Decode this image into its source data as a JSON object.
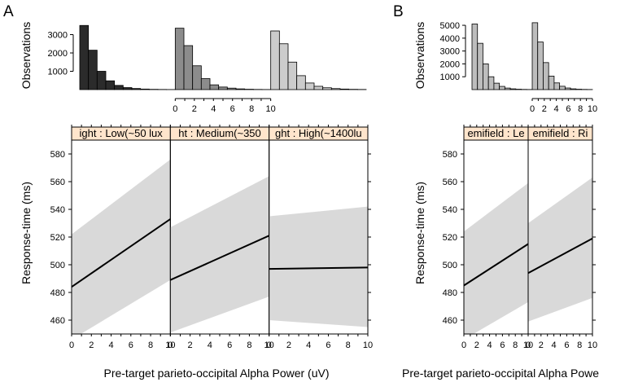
{
  "panel_labels": [
    "A",
    "B"
  ],
  "colors": {
    "ci_band": "#d9d9d9",
    "strip": "#ffe5cc",
    "hist_A": [
      "#2b2b2b",
      "#8c8c8c",
      "#cccccc"
    ],
    "hist_B": [
      "#bdbdbd",
      "#bdbdbd"
    ]
  },
  "chart_data": [
    {
      "panel": "A",
      "type": "line",
      "ylabel": "Response-time (ms)",
      "xlabel": "Pre-target parieto-occipital Alpha Power (uV)",
      "xlim": [
        0,
        10
      ],
      "ylim": [
        450,
        590
      ],
      "yticks": [
        460,
        480,
        500,
        520,
        540,
        560,
        580
      ],
      "xticks": [
        0,
        2,
        4,
        6,
        8,
        10
      ],
      "grid": false,
      "facets": [
        {
          "strip_label": "ight : Low(~50 lux",
          "x": [
            0,
            10
          ],
          "fit": [
            484,
            533
          ],
          "ci_lower": [
            446,
            489
          ],
          "ci_upper": [
            522,
            576
          ]
        },
        {
          "strip_label": "ht : Medium(~350",
          "x": [
            0,
            10
          ],
          "fit": [
            489,
            521
          ],
          "ci_lower": [
            451,
            477
          ],
          "ci_upper": [
            527,
            564
          ]
        },
        {
          "strip_label": "ght : High(~1400lu",
          "x": [
            0,
            10
          ],
          "fit": [
            497,
            498
          ],
          "ci_lower": [
            460,
            455
          ],
          "ci_upper": [
            535,
            542
          ]
        }
      ]
    },
    {
      "panel": "A",
      "type": "bar",
      "ylabel": "Observations",
      "ylim": [
        0,
        4000
      ],
      "yticks": [
        1000,
        2000,
        3000
      ],
      "xticks": [
        0,
        2,
        4,
        6,
        8,
        10
      ],
      "bin_width": 1,
      "histograms": [
        {
          "values": [
            3500,
            2150,
            1000,
            480,
            230,
            110,
            60,
            30,
            15,
            8,
            4
          ]
        },
        {
          "values": [
            3350,
            2400,
            1300,
            600,
            260,
            140,
            80,
            40,
            20,
            10,
            5
          ]
        },
        {
          "values": [
            3200,
            2500,
            1500,
            760,
            360,
            180,
            100,
            55,
            30,
            15,
            8
          ]
        }
      ]
    },
    {
      "panel": "B",
      "type": "line",
      "ylabel": "Response-time (ms)",
      "xlabel": "Pre-target parieto-occipital Alpha Powe",
      "xlim": [
        0,
        10
      ],
      "ylim": [
        450,
        590
      ],
      "yticks": [
        460,
        480,
        500,
        520,
        540,
        560,
        580
      ],
      "xticks": [
        0,
        2,
        4,
        6,
        8,
        10
      ],
      "grid": false,
      "facets": [
        {
          "strip_label": "emifield : Le",
          "x": [
            0,
            10
          ],
          "fit": [
            485,
            515
          ],
          "ci_lower": [
            446,
            473
          ],
          "ci_upper": [
            524,
            559
          ]
        },
        {
          "strip_label": "emifield : Ri",
          "x": [
            0,
            10
          ],
          "fit": [
            494,
            519
          ],
          "ci_lower": [
            459,
            476
          ],
          "ci_upper": [
            530,
            563
          ]
        }
      ]
    },
    {
      "panel": "B",
      "type": "bar",
      "ylabel": "Observations",
      "ylim": [
        0,
        5700
      ],
      "yticks": [
        1000,
        2000,
        3000,
        4000,
        5000
      ],
      "xticks": [
        0,
        2,
        4,
        6,
        8,
        10
      ],
      "bin_width": 1,
      "histograms": [
        {
          "values": [
            5100,
            3600,
            2000,
            1000,
            500,
            250,
            120,
            60,
            30,
            15,
            8
          ]
        },
        {
          "values": [
            5200,
            3700,
            2100,
            1050,
            520,
            260,
            125,
            60,
            30,
            15,
            8
          ]
        }
      ]
    }
  ]
}
